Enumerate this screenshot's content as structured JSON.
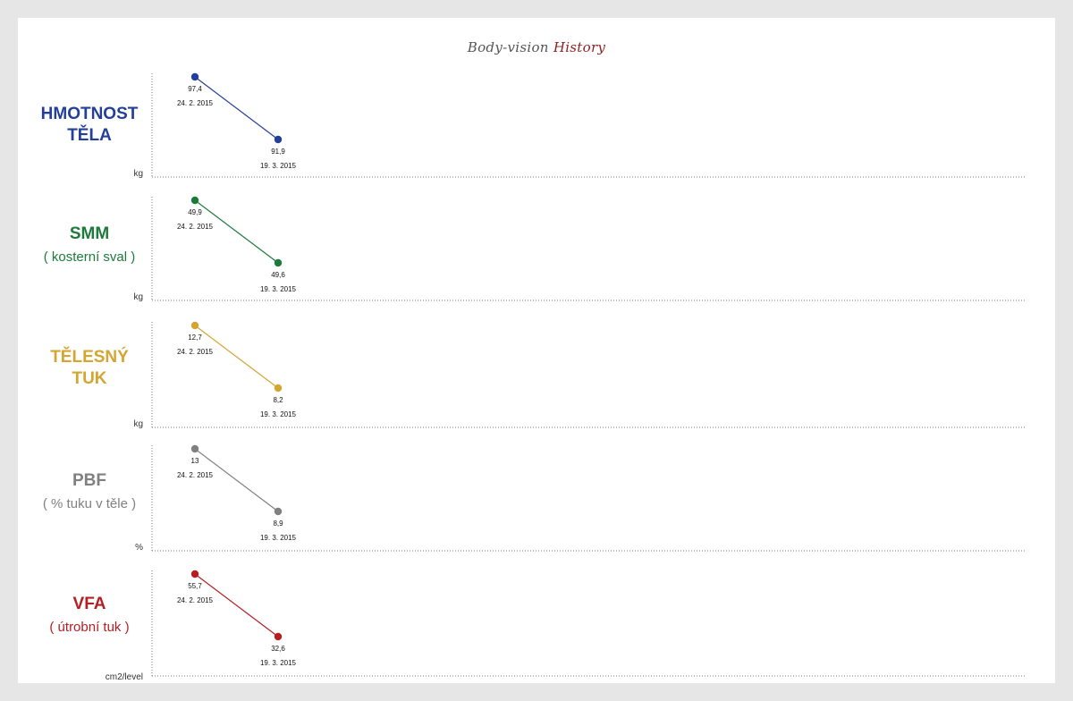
{
  "title": {
    "main": "Body-vision",
    "accent": "History"
  },
  "chart_data": [
    {
      "type": "line",
      "label_lines": [
        "HMOTNOST",
        "TĚLA"
      ],
      "sublabel": "",
      "unit": "kg",
      "color": "#243f9a",
      "x": [
        "24. 2. 2015",
        "19. 3. 2015"
      ],
      "values": [
        97.4,
        91.9
      ],
      "value_labels": [
        "97,4",
        "91,9"
      ]
    },
    {
      "type": "line",
      "label_lines": [
        "SMM"
      ],
      "sublabel": "( kosterní sval )",
      "unit": "kg",
      "color": "#1c7a3b",
      "x": [
        "24. 2. 2015",
        "19. 3. 2015"
      ],
      "values": [
        49.9,
        49.6
      ],
      "value_labels": [
        "49,9",
        "49,6"
      ]
    },
    {
      "type": "line",
      "label_lines": [
        "TĚLESNÝ",
        "TUK"
      ],
      "sublabel": "",
      "unit": "kg",
      "color": "#d4a530",
      "x": [
        "24. 2. 2015",
        "19. 3. 2015"
      ],
      "values": [
        12.7,
        8.2
      ],
      "value_labels": [
        "12,7",
        "8,2"
      ]
    },
    {
      "type": "line",
      "label_lines": [
        "PBF"
      ],
      "sublabel": "( % tuku v těle )",
      "unit": "%",
      "color": "#808080",
      "x": [
        "24. 2. 2015",
        "19. 3. 2015"
      ],
      "values": [
        13,
        8.9
      ],
      "value_labels": [
        "13",
        "8,9"
      ]
    },
    {
      "type": "line",
      "label_lines": [
        "VFA"
      ],
      "sublabel": "( útrobní tuk )",
      "unit": "cm2/level",
      "color": "#b51e23",
      "x": [
        "24. 2. 2015",
        "19. 3. 2015"
      ],
      "values": [
        55.7,
        32.6
      ],
      "value_labels": [
        "55,7",
        "32,6"
      ]
    }
  ]
}
